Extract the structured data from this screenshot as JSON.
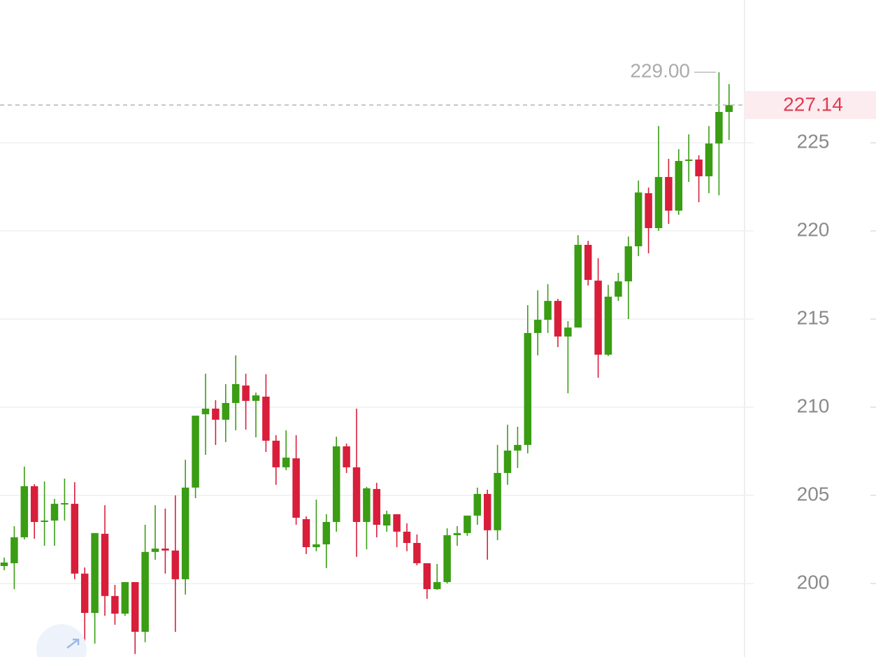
{
  "chart_data": {
    "type": "candlestick",
    "open": [
      200.99,
      201.15,
      202.62,
      205.52,
      203.49,
      203.57,
      204.52,
      204.52,
      200.56,
      198.33,
      202.82,
      199.29,
      198.29,
      200.08,
      197.26,
      201.79,
      201.98,
      201.87,
      200.24,
      205.44,
      209.6,
      209.92,
      209.29,
      210.24,
      211.23,
      210.36,
      210.6,
      208.1,
      206.59,
      207.1,
      203.65,
      202.06,
      202.22,
      203.49,
      207.78,
      206.59,
      203.49,
      205.36,
      203.29,
      203.93,
      202.94,
      202.3,
      201.15,
      199.68,
      200.08,
      202.74,
      202.86,
      203.85,
      205.08,
      203.02,
      206.27,
      207.54,
      207.86,
      214.21,
      214.96,
      216.03,
      214.01,
      214.52,
      219.21,
      217.18,
      212.98,
      216.27,
      217.14,
      219.13,
      222.14,
      220.16,
      223.06,
      221.15,
      223.97,
      224.05,
      223.1,
      224.96,
      226.75
    ],
    "high": [
      201.47,
      203.25,
      206.63,
      205.63,
      205.79,
      204.8,
      205.95,
      205.75,
      200.91,
      202.86,
      204.44,
      199.92,
      200.08,
      200.08,
      203.33,
      204.44,
      204.25,
      205.0,
      207.02,
      209.52,
      211.9,
      210.4,
      211.31,
      212.94,
      211.9,
      210.83,
      211.87,
      208.41,
      208.69,
      208.41,
      203.81,
      204.76,
      203.93,
      208.33,
      207.94,
      209.92,
      205.48,
      205.71,
      204.13,
      203.93,
      203.41,
      202.78,
      201.15,
      201.11,
      203.13,
      203.25,
      203.85,
      205.44,
      205.32,
      207.86,
      209.01,
      208.89,
      215.79,
      216.63,
      216.98,
      216.15,
      214.88,
      219.76,
      219.44,
      218.45,
      216.94,
      217.62,
      219.68,
      222.86,
      222.46,
      225.95,
      224.09,
      224.64,
      225.48,
      224.29,
      225.95,
      229.0,
      228.33
    ],
    "low": [
      200.75,
      199.68,
      202.5,
      202.54,
      202.14,
      202.14,
      203.57,
      200.24,
      196.0,
      196.59,
      198.17,
      197.66,
      198.17,
      196.0,
      196.67,
      201.35,
      200.56,
      197.26,
      199.37,
      204.84,
      207.3,
      207.86,
      208.02,
      208.69,
      208.73,
      208.29,
      207.46,
      205.6,
      206.43,
      203.33,
      201.67,
      201.83,
      200.87,
      202.94,
      206.27,
      201.51,
      201.94,
      202.62,
      202.94,
      202.06,
      201.83,
      201.03,
      199.13,
      199.64,
      200.0,
      202.14,
      202.7,
      203.33,
      201.35,
      202.46,
      205.6,
      206.55,
      207.38,
      212.94,
      214.21,
      213.41,
      210.79,
      214.52,
      216.9,
      211.67,
      212.9,
      216.03,
      215.0,
      218.57,
      218.73,
      220.0,
      220.4,
      220.91,
      222.78,
      221.63,
      222.14,
      222.02,
      225.16
    ],
    "close": [
      201.19,
      202.62,
      205.52,
      203.49,
      203.57,
      204.52,
      204.56,
      200.56,
      198.33,
      202.86,
      199.29,
      198.29,
      200.08,
      197.26,
      201.79,
      201.98,
      201.87,
      200.24,
      205.44,
      209.52,
      209.92,
      209.29,
      210.24,
      211.31,
      210.36,
      210.67,
      208.1,
      206.59,
      207.14,
      203.73,
      202.06,
      202.22,
      203.49,
      207.78,
      206.59,
      203.49,
      205.4,
      203.33,
      203.93,
      202.94,
      202.3,
      201.15,
      199.68,
      200.08,
      202.74,
      202.86,
      203.85,
      205.08,
      203.02,
      206.27,
      207.54,
      207.86,
      214.21,
      214.96,
      216.03,
      214.01,
      214.52,
      219.21,
      217.22,
      212.98,
      216.27,
      217.14,
      219.13,
      222.18,
      220.16,
      223.06,
      221.15,
      223.97,
      224.05,
      223.1,
      224.96,
      226.75,
      227.14
    ],
    "up_color": "#3a9d14",
    "down_color": "#d81e3a",
    "ylim": [
      195.83,
      233.1
    ],
    "yticks": [
      200,
      205,
      210,
      215,
      220,
      225
    ],
    "grid": true,
    "last_price": 227.14,
    "max_marker": {
      "value": 229,
      "label": "229.00"
    }
  }
}
